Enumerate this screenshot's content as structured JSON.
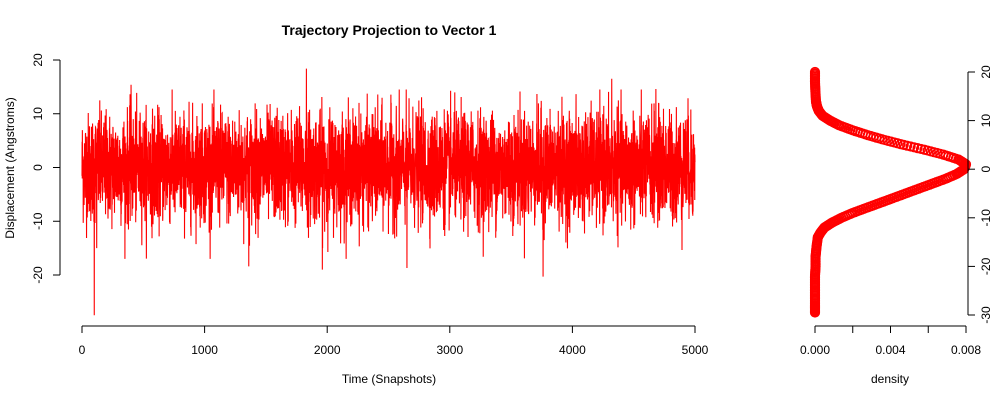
{
  "colors": {
    "series": "#ff0000",
    "axis": "#000000",
    "background": "#ffffff"
  },
  "chart_data": [
    {
      "type": "line",
      "title": "Trajectory Projection to Vector 1",
      "xlabel": "Time (Snapshots)",
      "ylabel": "Displacement (Angstroms)",
      "xlim": [
        0,
        5000
      ],
      "ylim": [
        -27.5,
        18.5
      ],
      "xticks": [
        0,
        1000,
        2000,
        3000,
        4000,
        5000
      ],
      "yticks": [
        -20,
        -10,
        0,
        10,
        20
      ],
      "xtick_labels": [
        "0",
        "1000",
        "2000",
        "3000",
        "4000",
        "5000"
      ],
      "ytick_labels": [
        "-20",
        "-10",
        "0",
        "10",
        "20"
      ],
      "n_points": 5000,
      "summary": {
        "mean": 0,
        "sd": 5,
        "min": -27.5,
        "max": 18.5
      },
      "extremes": [
        {
          "x": 100,
          "y": -27.5
        },
        {
          "x": 1830,
          "y": 18.4
        },
        {
          "x": 3760,
          "y": -20.3
        },
        {
          "x": 400,
          "y": 15.4
        },
        {
          "x": 4320,
          "y": 16.5
        },
        {
          "x": 2650,
          "y": -18.7
        },
        {
          "x": 1960,
          "y": -19.0
        },
        {
          "x": 1360,
          "y": -18.4
        },
        {
          "x": 4680,
          "y": 14.6
        },
        {
          "x": 120,
          "y": -15.0
        }
      ],
      "grid": false,
      "legend": "none"
    },
    {
      "type": "scatter",
      "title": "",
      "xlabel": "density",
      "ylabel": "",
      "xlim": [
        0,
        0.008
      ],
      "ylim": [
        -30,
        20
      ],
      "xticks": [
        0,
        0.002,
        0.004,
        0.006,
        0.008
      ],
      "xtick_labels": [
        "0.000",
        "",
        "0.004",
        "",
        "0.008"
      ],
      "yticks": [
        -30,
        -20,
        -10,
        0,
        10,
        20
      ],
      "ytick_labels": [
        "-30",
        "-20",
        "-10",
        "0",
        "10",
        "20"
      ],
      "points": [
        [
          0.0,
          -29.5
        ],
        [
          0.0,
          -28
        ],
        [
          0.0,
          -26
        ],
        [
          0.0,
          -24
        ],
        [
          0.0,
          -22
        ],
        [
          3e-05,
          -20
        ],
        [
          3e-05,
          -18
        ],
        [
          8e-05,
          -16
        ],
        [
          0.00015,
          -14
        ],
        [
          0.0003,
          -13
        ],
        [
          0.0005,
          -12
        ],
        [
          0.0009,
          -11
        ],
        [
          0.0014,
          -10
        ],
        [
          0.002,
          -9
        ],
        [
          0.0027,
          -8
        ],
        [
          0.0034,
          -7
        ],
        [
          0.0041,
          -6
        ],
        [
          0.0048,
          -5
        ],
        [
          0.0055,
          -4
        ],
        [
          0.0062,
          -3
        ],
        [
          0.0069,
          -2
        ],
        [
          0.0075,
          -1
        ],
        [
          0.0079,
          0
        ],
        [
          0.008,
          1
        ],
        [
          0.0076,
          2
        ],
        [
          0.0068,
          3
        ],
        [
          0.0058,
          4
        ],
        [
          0.0047,
          5
        ],
        [
          0.0037,
          6
        ],
        [
          0.0028,
          7
        ],
        [
          0.002,
          8
        ],
        [
          0.0013,
          9
        ],
        [
          0.0008,
          10
        ],
        [
          0.0004,
          11
        ],
        [
          0.0002,
          12
        ],
        [
          0.0001,
          13
        ],
        [
          5e-05,
          14
        ],
        [
          2e-05,
          16
        ],
        [
          0.0,
          18
        ],
        [
          0.0,
          20
        ]
      ],
      "grid": false,
      "legend": "none"
    }
  ]
}
